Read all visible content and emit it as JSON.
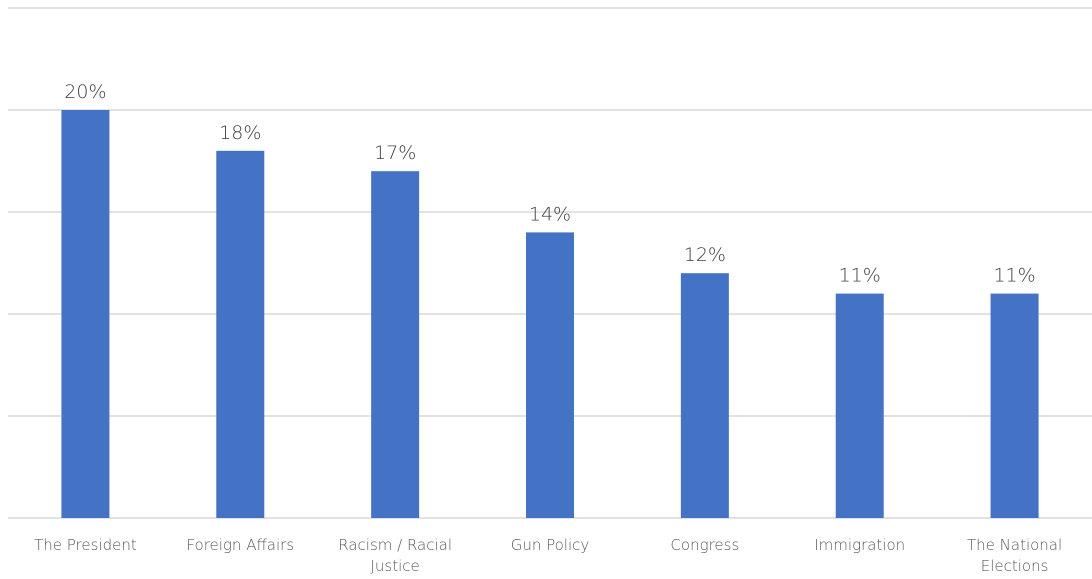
{
  "chart_data": {
    "type": "bar",
    "title": "",
    "xlabel": "",
    "ylabel": "",
    "ylim": [
      0,
      25
    ],
    "y_gridlines": [
      0,
      5,
      10,
      15,
      20,
      25
    ],
    "show_y_tick_labels": false,
    "grid": true,
    "legend": "none",
    "bar_color": "#4472c4",
    "categories": [
      "The President",
      "Foreign Affairs",
      "Racism / Racial Justice",
      "Gun Policy",
      "Congress",
      "Immigration",
      "The National Elections"
    ],
    "category_lines": [
      [
        "The President"
      ],
      [
        "Foreign Affairs"
      ],
      [
        "Racism / Racial",
        "Justice"
      ],
      [
        "Gun Policy"
      ],
      [
        "Congress"
      ],
      [
        "Immigration"
      ],
      [
        "The National",
        "Elections"
      ]
    ],
    "values": [
      20,
      18,
      17,
      14,
      12,
      11,
      11
    ],
    "value_labels": [
      "20%",
      "18%",
      "17%",
      "14%",
      "12%",
      "11%",
      "11%"
    ]
  }
}
